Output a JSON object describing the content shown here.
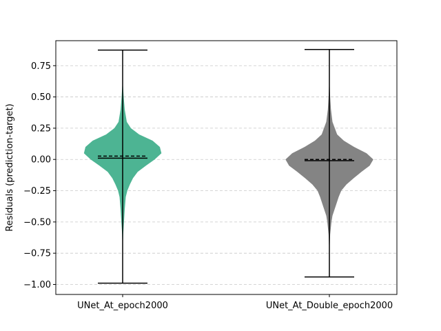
{
  "chart_data": {
    "type": "violin",
    "ylabel": "Residuals (prediction-target)",
    "xlabel": "",
    "title": "",
    "ylim": [
      -1.08,
      0.95
    ],
    "yticks": [
      -1.0,
      -0.75,
      -0.5,
      -0.25,
      0.0,
      0.25,
      0.5,
      0.75
    ],
    "ytick_labels": [
      "−1.00",
      "−0.75",
      "−0.50",
      "−0.25",
      "0.00",
      "0.25",
      "0.50",
      "0.75"
    ],
    "grid": true,
    "categories": [
      "UNet_At_epoch2000",
      "UNet_At_Double_epoch2000"
    ],
    "series": [
      {
        "category": "UNet_At_epoch2000",
        "color": "#4db493",
        "min": -0.99,
        "max": 0.875,
        "mean": 0.027,
        "median": 0.01,
        "density_profile": [
          [
            -0.99,
            0.0
          ],
          [
            -0.8,
            0.0
          ],
          [
            -0.7,
            0.003
          ],
          [
            -0.6,
            0.01
          ],
          [
            -0.5,
            0.025
          ],
          [
            -0.4,
            0.04
          ],
          [
            -0.3,
            0.06
          ],
          [
            -0.25,
            0.09
          ],
          [
            -0.2,
            0.14
          ],
          [
            -0.15,
            0.2
          ],
          [
            -0.1,
            0.29
          ],
          [
            -0.05,
            0.45
          ],
          [
            0.0,
            0.62
          ],
          [
            0.05,
            0.75
          ],
          [
            0.1,
            0.72
          ],
          [
            0.15,
            0.58
          ],
          [
            0.2,
            0.32
          ],
          [
            0.25,
            0.16
          ],
          [
            0.3,
            0.08
          ],
          [
            0.4,
            0.04
          ],
          [
            0.5,
            0.02
          ],
          [
            0.6,
            0.005
          ],
          [
            0.65,
            0.0
          ],
          [
            0.875,
            0.0
          ]
        ]
      },
      {
        "category": "UNet_At_Double_epoch2000",
        "color": "#848484",
        "min": -0.94,
        "max": 0.88,
        "mean": 0.0,
        "median": -0.01,
        "density_profile": [
          [
            -0.94,
            0.0
          ],
          [
            -0.8,
            0.0
          ],
          [
            -0.7,
            0.005
          ],
          [
            -0.6,
            0.015
          ],
          [
            -0.5,
            0.04
          ],
          [
            -0.45,
            0.06
          ],
          [
            -0.4,
            0.1
          ],
          [
            -0.35,
            0.14
          ],
          [
            -0.3,
            0.18
          ],
          [
            -0.25,
            0.23
          ],
          [
            -0.2,
            0.33
          ],
          [
            -0.15,
            0.47
          ],
          [
            -0.1,
            0.62
          ],
          [
            -0.05,
            0.78
          ],
          [
            0.0,
            0.85
          ],
          [
            0.05,
            0.72
          ],
          [
            0.1,
            0.48
          ],
          [
            0.15,
            0.28
          ],
          [
            0.2,
            0.15
          ],
          [
            0.3,
            0.06
          ],
          [
            0.4,
            0.03
          ],
          [
            0.5,
            0.015
          ],
          [
            0.6,
            0.005
          ],
          [
            0.7,
            0.0
          ],
          [
            0.88,
            0.0
          ]
        ]
      }
    ]
  }
}
